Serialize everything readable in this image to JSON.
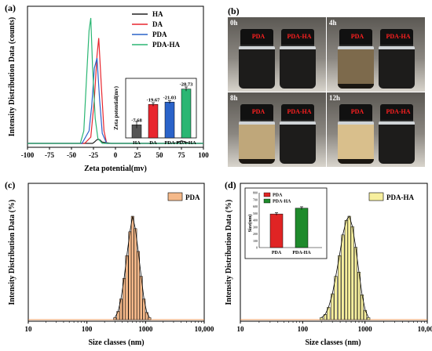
{
  "panels": {
    "a": {
      "label": "(a)",
      "chart_data": {
        "type": "line",
        "ylabel": "Intensity Distribution Data (counts)",
        "xlabel": "Zeta potential(mv)",
        "xlim": [
          -100,
          100
        ],
        "xticks": [
          "-100",
          "-75",
          "-50",
          "-25",
          "0",
          "25",
          "50",
          "75",
          "100"
        ],
        "legend_position": "top-right",
        "series": [
          {
            "name": "HA",
            "color": "#222222",
            "x": [
              -100,
              -40,
              -30,
              -26,
              -24,
              -21,
              -18,
              -15,
              -5,
              60,
              70,
              75,
              80,
              85,
              100
            ],
            "y": [
              0,
              0,
              0,
              0,
              0.01,
              0.03,
              0.03,
              0.01,
              0,
              0,
              0.005,
              0.02,
              0.01,
              0,
              0
            ]
          },
          {
            "name": "DA",
            "color": "#e8262e",
            "x": [
              -100,
              -35,
              -28,
              -24,
              -21,
              -19,
              -16,
              -13,
              -10,
              100
            ],
            "y": [
              0,
              0,
              0.05,
              0.35,
              0.7,
              0.84,
              0.45,
              0.1,
              0,
              0
            ]
          },
          {
            "name": "PDA",
            "color": "#2a63c9",
            "x": [
              -100,
              -38,
              -30,
              -27,
              -24,
              -21,
              -18,
              -15,
              -10,
              100
            ],
            "y": [
              0,
              0,
              0.1,
              0.3,
              0.6,
              0.68,
              0.35,
              0.08,
              0,
              0
            ]
          },
          {
            "name": "PDA-HA",
            "color": "#2bb673",
            "x": [
              -100,
              -40,
              -36,
              -33,
              -30,
              -28,
              -26,
              -23,
              -20,
              -15,
              100
            ],
            "y": [
              0,
              0,
              0.1,
              0.5,
              0.9,
              1.0,
              0.6,
              0.2,
              0.04,
              0,
              0
            ]
          }
        ],
        "inset": {
          "type": "bar",
          "ylabel": "Zeta potential(mv)",
          "ylim": [
            0,
            35
          ],
          "categories": [
            "HA",
            "DA",
            "PDA",
            "PDA-HA"
          ],
          "values": [
            -7.68,
            -19.67,
            -21.03,
            -28.73
          ],
          "value_labels": [
            "-7.68",
            "-19.67",
            "-21.03",
            "-28.73"
          ],
          "plotted": [
            7.68,
            19.67,
            21.03,
            28.73
          ],
          "errors": [
            2.0,
            1.0,
            0.8,
            1.2
          ],
          "colors": [
            "#555555",
            "#e8262e",
            "#2a63c9",
            "#2bb673"
          ]
        }
      }
    },
    "b": {
      "label": "(b)",
      "photos": [
        {
          "time": "0h",
          "left": "PDA",
          "right": "PDA-HA",
          "left_liquid": "#1d1c1b",
          "right_liquid": "#1d1c1b"
        },
        {
          "time": "4h",
          "left": "PDA",
          "right": "PDA-HA",
          "left_liquid": "#7d6a4c",
          "right_liquid": "#1d1c1b"
        },
        {
          "time": "8h",
          "left": "PDA",
          "right": "PDA-HA",
          "left_liquid": "#bfa77a",
          "right_liquid": "#1d1c1b"
        },
        {
          "time": "12h",
          "left": "PDA",
          "right": "PDA-HA",
          "left_liquid": "#d9bf8c",
          "right_liquid": "#1d1c1b"
        }
      ]
    },
    "c": {
      "label": "(c)",
      "chart_data": {
        "type": "bar",
        "ylabel": "Intensity Distribution Data (%)",
        "xlabel": "Size classes (nm)",
        "xscale": "log",
        "xlim": [
          10,
          10000
        ],
        "xticks": [
          "10",
          "100",
          "1000",
          "10,000"
        ],
        "legend": "PDA",
        "color": "#f5b98a",
        "x": [
          300,
          340,
          380,
          430,
          480,
          540,
          600,
          670,
          750,
          840,
          940,
          1050,
          1170
        ],
        "values": [
          0.02,
          0.08,
          0.2,
          0.4,
          0.62,
          0.85,
          1.0,
          0.88,
          0.66,
          0.42,
          0.2,
          0.07,
          0.02
        ]
      }
    },
    "d": {
      "label": "(d)",
      "chart_data": {
        "type": "bar",
        "ylabel": "Intensity Distribution Data (%)",
        "xlabel": "Size classes (nm)",
        "xscale": "log",
        "xlim": [
          10,
          10000
        ],
        "xticks": [
          "10",
          "100",
          "1000",
          "10,000"
        ],
        "legend": "PDA-HA",
        "color": "#f7ef9e",
        "x": [
          200,
          230,
          260,
          300,
          340,
          390,
          440,
          500,
          560,
          630,
          710,
          800,
          900,
          1010,
          1140
        ],
        "values": [
          0.02,
          0.05,
          0.12,
          0.25,
          0.42,
          0.62,
          0.82,
          0.96,
          1.0,
          0.9,
          0.7,
          0.46,
          0.24,
          0.09,
          0.02
        ],
        "inset": {
          "type": "bar",
          "ylabel": "Size(nm)",
          "ylim": [
            0,
            800
          ],
          "yticks": [
            "0",
            "100",
            "200",
            "300",
            "400",
            "500",
            "600",
            "700",
            "800"
          ],
          "categories": [
            "PDA",
            "PDA-HA"
          ],
          "values": [
            490,
            575
          ],
          "errors": [
            18,
            20
          ],
          "colors": [
            "#e02424",
            "#1f8a2c"
          ],
          "legend": [
            "PDA",
            "PDA-HA"
          ]
        }
      }
    }
  }
}
